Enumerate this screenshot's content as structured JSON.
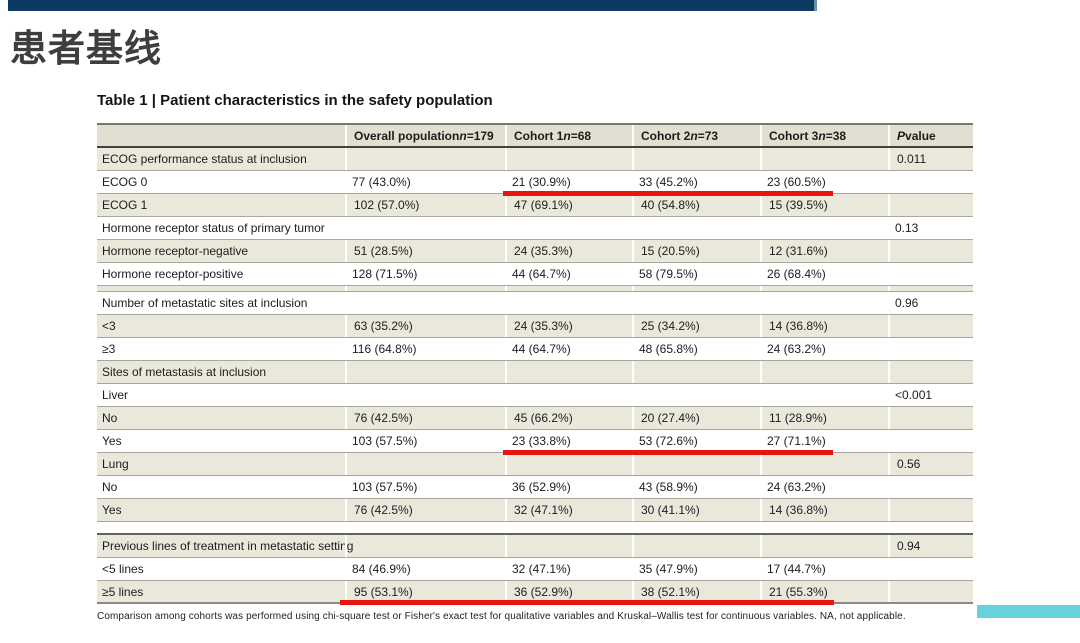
{
  "slide": {
    "title": "患者基线",
    "accent_colors": {
      "top_bar": "#0d3a62",
      "top_bar_tip": "#6e8fa9",
      "bottom_bar": "#69d0dd",
      "highlight_underline": "#e8150f",
      "shaded_row": "#e9e8db",
      "header_row": "#e0dfd1"
    }
  },
  "table": {
    "caption": "Table 1 | Patient characteristics in the safety population",
    "columns": [
      "",
      "Overall population n=179",
      "Cohort 1 n=68",
      "Cohort 2 n=73",
      "Cohort 3 n=38",
      "P value"
    ],
    "rows": [
      {
        "label": "ECOG performance status at inclusion",
        "cells": [
          "",
          "",
          "",
          ""
        ],
        "p": "0.011",
        "shade": true
      },
      {
        "label": "ECOG 0",
        "cells": [
          "77 (43.0%)",
          "21 (30.9%)",
          "33 (45.2%)",
          "23 (60.5%)"
        ],
        "p": "",
        "shade": false,
        "underline": "cohorts"
      },
      {
        "label": "ECOG 1",
        "cells": [
          "102 (57.0%)",
          "47 (69.1%)",
          "40 (54.8%)",
          "15 (39.5%)"
        ],
        "p": "",
        "shade": true
      },
      {
        "label": "Hormone receptor status of primary tumor",
        "cells": [
          "",
          "",
          "",
          ""
        ],
        "p": "0.13",
        "shade": false
      },
      {
        "label": "Hormone receptor-negative",
        "cells": [
          "51 (28.5%)",
          "24 (35.3%)",
          "15 (20.5%)",
          "12 (31.6%)"
        ],
        "p": "",
        "shade": true
      },
      {
        "label": "Hormone receptor-positive",
        "cells": [
          "128 (71.5%)",
          "44 (64.7%)",
          "58 (79.5%)",
          "26 (68.4%)"
        ],
        "p": "",
        "shade": false
      },
      {
        "type": "spacer",
        "shade": true
      },
      {
        "label": "Number of metastatic sites at inclusion",
        "cells": [
          "",
          "",
          "",
          ""
        ],
        "p": "0.96",
        "shade": false
      },
      {
        "label": "<3",
        "cells": [
          "63 (35.2%)",
          "24 (35.3%)",
          "25 (34.2%)",
          "14 (36.8%)"
        ],
        "p": "",
        "shade": true
      },
      {
        "label": "≥3",
        "cells": [
          "116 (64.8%)",
          "44 (64.7%)",
          "48 (65.8%)",
          "24 (63.2%)"
        ],
        "p": "",
        "shade": false
      },
      {
        "label": "Sites of metastasis at inclusion",
        "cells": [
          "",
          "",
          "",
          ""
        ],
        "p": "",
        "shade": true
      },
      {
        "label": "Liver",
        "cells": [
          "",
          "",
          "",
          ""
        ],
        "p": "<0.001",
        "shade": false
      },
      {
        "label": "No",
        "cells": [
          "76 (42.5%)",
          "45 (66.2%)",
          "20 (27.4%)",
          "11 (28.9%)"
        ],
        "p": "",
        "shade": true
      },
      {
        "label": "Yes",
        "cells": [
          "103 (57.5%)",
          "23 (33.8%)",
          "53 (72.6%)",
          "27 (71.1%)"
        ],
        "p": "",
        "shade": false,
        "underline": "cohorts"
      },
      {
        "label": "Lung",
        "cells": [
          "",
          "",
          "",
          ""
        ],
        "p": "0.56",
        "shade": true
      },
      {
        "label": "No",
        "cells": [
          "103 (57.5%)",
          "36 (52.9%)",
          "43 (58.9%)",
          "24 (63.2%)"
        ],
        "p": "",
        "shade": false
      },
      {
        "label": "Yes",
        "cells": [
          "76 (42.5%)",
          "32 (47.1%)",
          "30 (41.1%)",
          "14 (36.8%)"
        ],
        "p": "",
        "shade": true
      },
      {
        "type": "spacer",
        "shade": false
      },
      {
        "label": "Previous lines of treatment in metastatic setting",
        "cells": [
          "",
          "",
          "",
          ""
        ],
        "p": "0.94",
        "shade": true
      },
      {
        "label": "<5 lines",
        "cells": [
          "84 (46.9%)",
          "32 (47.1%)",
          "35 (47.9%)",
          "17 (44.7%)"
        ],
        "p": "",
        "shade": false
      },
      {
        "label": "≥5 lines",
        "cells": [
          "95 (53.1%)",
          "36 (52.9%)",
          "38 (52.1%)",
          "21 (55.3%)"
        ],
        "p": "",
        "shade": true,
        "underline": "all",
        "last": true
      }
    ],
    "footnote": "Comparison among cohorts was performed using chi-square test or Fisher's exact test for qualitative variables and Kruskal–Wallis test for continuous variables. NA, not applicable."
  }
}
